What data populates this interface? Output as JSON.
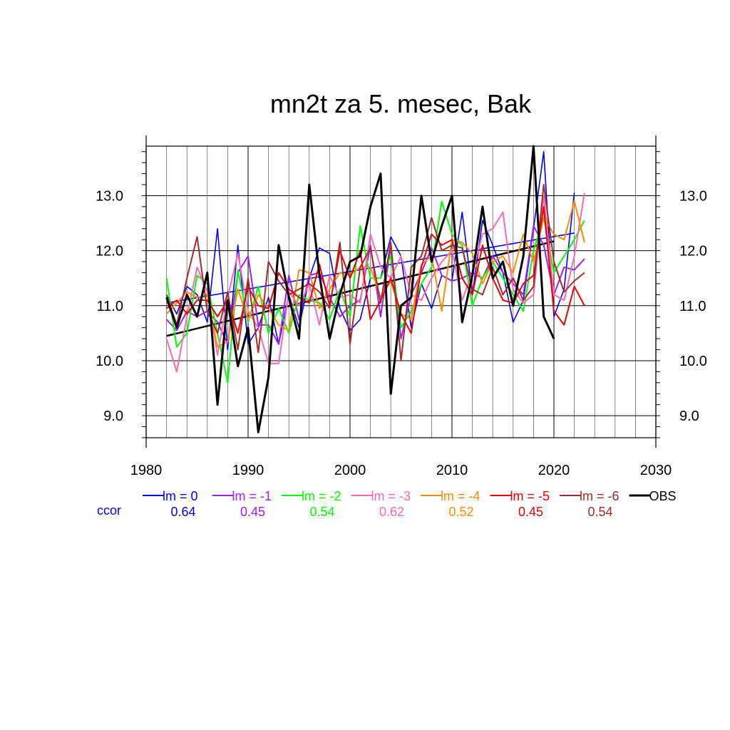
{
  "chart_data": {
    "type": "line",
    "title": "mn2t za 5. mesec, Bak",
    "xlabel": "",
    "ylabel": "",
    "xlim": [
      1980,
      2030
    ],
    "ylim": [
      8.6,
      13.9
    ],
    "x_ticks": [
      "1980",
      "1990",
      "2000",
      "2010",
      "2020",
      "2030"
    ],
    "y_ticks": [
      "9.0",
      "10.0",
      "11.0",
      "12.0",
      "13.0"
    ],
    "grid": true,
    "legend_position": "bottom",
    "ccor_label": "ccor",
    "series": [
      {
        "name": "lm = 0",
        "color": "#0000ff",
        "ccor": "0.64",
        "x_start": 1982,
        "trend": [
          11.05,
          12.32
        ],
        "values": [
          11.2,
          10.85,
          11.35,
          11.2,
          10.7,
          12.4,
          10.2,
          12.1,
          10.3,
          10.6,
          11.15,
          10.3,
          11.2,
          10.6,
          11.5,
          12.05,
          11.95,
          10.95,
          10.55,
          10.75,
          11.5,
          11.5,
          12.25,
          11.9,
          10.6,
          11.4,
          10.95,
          11.55,
          11.45,
          12.7,
          11.2,
          12.55,
          12.1,
          11.6,
          10.7,
          11.1,
          12.4,
          13.8,
          10.8,
          11.3,
          13.05
        ]
      },
      {
        "name": "lm = -1",
        "color": "#a020f0",
        "ccor": "0.45",
        "x_start": 1982,
        "trend": null,
        "values": [
          10.75,
          10.55,
          10.9,
          10.8,
          10.9,
          10.7,
          10.3,
          11.6,
          11.9,
          10.65,
          10.65,
          10.3,
          11.55,
          10.75,
          11.55,
          11.6,
          11.15,
          10.8,
          11.0,
          11.1,
          12.1,
          10.8,
          12.1,
          10.4,
          11.2,
          11.6,
          12.05,
          11.55,
          11.45,
          11.5,
          11.6,
          11.5,
          11.9,
          11.6,
          11.4,
          11.2,
          12.45,
          12.1,
          11.2,
          11.7,
          11.65,
          11.85
        ]
      },
      {
        "name": "lm = -2",
        "color": "#00ff00",
        "ccor": "0.54",
        "x_start": 1982,
        "trend": null,
        "values": [
          11.5,
          10.25,
          10.5,
          11.55,
          11.4,
          10.5,
          9.6,
          11.65,
          10.7,
          11.35,
          10.5,
          10.95,
          10.5,
          11.2,
          11.1,
          11.05,
          10.75,
          11.3,
          10.8,
          12.45,
          11.5,
          11.5,
          11.9,
          10.6,
          10.9,
          11.4,
          11.7,
          12.9,
          12.3,
          12.1,
          11.0,
          11.5,
          11.8,
          11.5,
          11.2,
          10.9,
          12.0,
          12.6,
          11.6,
          11.9,
          12.2,
          12.55
        ]
      },
      {
        "name": "lm = -3",
        "color": "#ff69b4",
        "ccor": "0.62",
        "x_start": 1982,
        "trend": null,
        "values": [
          10.4,
          9.8,
          10.8,
          11.7,
          11.25,
          10.1,
          11.15,
          11.95,
          10.9,
          10.6,
          9.95,
          9.95,
          11.25,
          11.0,
          11.4,
          10.65,
          11.55,
          11.15,
          11.2,
          11.05,
          12.3,
          11.7,
          11.5,
          11.9,
          11.2,
          11.1,
          11.5,
          11.8,
          12.0,
          11.1,
          11.6,
          12.3,
          12.4,
          12.7,
          11.3,
          11.05,
          11.2,
          13.0,
          11.2,
          11.1,
          11.9,
          13.05
        ]
      },
      {
        "name": "lm = -4",
        "color": "#ff8c00",
        "ccor": "0.52",
        "x_start": 1982,
        "trend": null,
        "values": [
          10.85,
          11.05,
          11.25,
          11.15,
          11.2,
          10.25,
          10.35,
          11.3,
          10.75,
          11.2,
          10.95,
          10.65,
          10.55,
          11.65,
          11.6,
          10.95,
          11.3,
          11.6,
          11.55,
          11.7,
          11.7,
          11.15,
          11.45,
          10.85,
          10.75,
          11.75,
          11.9,
          10.9,
          12.2,
          12.15,
          11.95,
          11.4,
          11.8,
          11.9,
          11.6,
          12.3,
          11.8,
          12.6,
          12.3,
          12.2,
          12.9,
          12.15
        ]
      },
      {
        "name": "lm = -5",
        "color": "#ee0000",
        "ccor": "0.45",
        "x_start": 1982,
        "trend": null,
        "values": [
          10.95,
          11.1,
          10.85,
          11.1,
          11.1,
          10.8,
          11.1,
          10.5,
          11.35,
          11.0,
          10.95,
          11.6,
          11.3,
          11.15,
          11.05,
          11.75,
          11.0,
          12.0,
          11.5,
          12.0,
          10.75,
          11.1,
          11.5,
          10.85,
          10.5,
          11.7,
          12.3,
          12.1,
          12.2,
          11.5,
          11.2,
          12.1,
          11.5,
          11.1,
          11.05,
          11.4,
          11.55,
          12.8,
          10.9,
          10.65,
          11.35,
          11.0
        ]
      },
      {
        "name": "lm = -6",
        "color": "#a52a2a",
        "ccor": "0.54",
        "x_start": 1982,
        "trend": null,
        "values": [
          11.2,
          10.65,
          11.5,
          12.25,
          10.9,
          10.5,
          11.25,
          10.2,
          11.5,
          10.15,
          11.8,
          11.45,
          11.2,
          11.3,
          11.4,
          11.25,
          10.95,
          12.15,
          10.3,
          11.7,
          12.05,
          11.05,
          12.15,
          10.0,
          11.7,
          11.9,
          12.6,
          12.0,
          12.1,
          12.05,
          11.3,
          11.2,
          11.7,
          11.2,
          11.5,
          11.1,
          11.35,
          13.2,
          11.8,
          11.25,
          11.45,
          11.6
        ]
      },
      {
        "name": "OBS",
        "color": "#000000",
        "ccor": "",
        "x_start": 1982,
        "trend": [
          10.45,
          12.17
        ],
        "values": [
          11.15,
          10.6,
          11.2,
          10.8,
          11.6,
          9.2,
          11.1,
          9.9,
          10.6,
          8.7,
          9.7,
          12.1,
          11.15,
          10.4,
          13.2,
          11.55,
          10.4,
          11.2,
          11.8,
          11.9,
          12.8,
          13.4,
          9.4,
          11.0,
          11.15,
          13.0,
          11.8,
          12.45,
          13.0,
          10.7,
          11.55,
          12.8,
          11.5,
          11.8,
          11.0,
          11.9,
          13.9,
          10.8,
          10.4
        ]
      }
    ]
  }
}
